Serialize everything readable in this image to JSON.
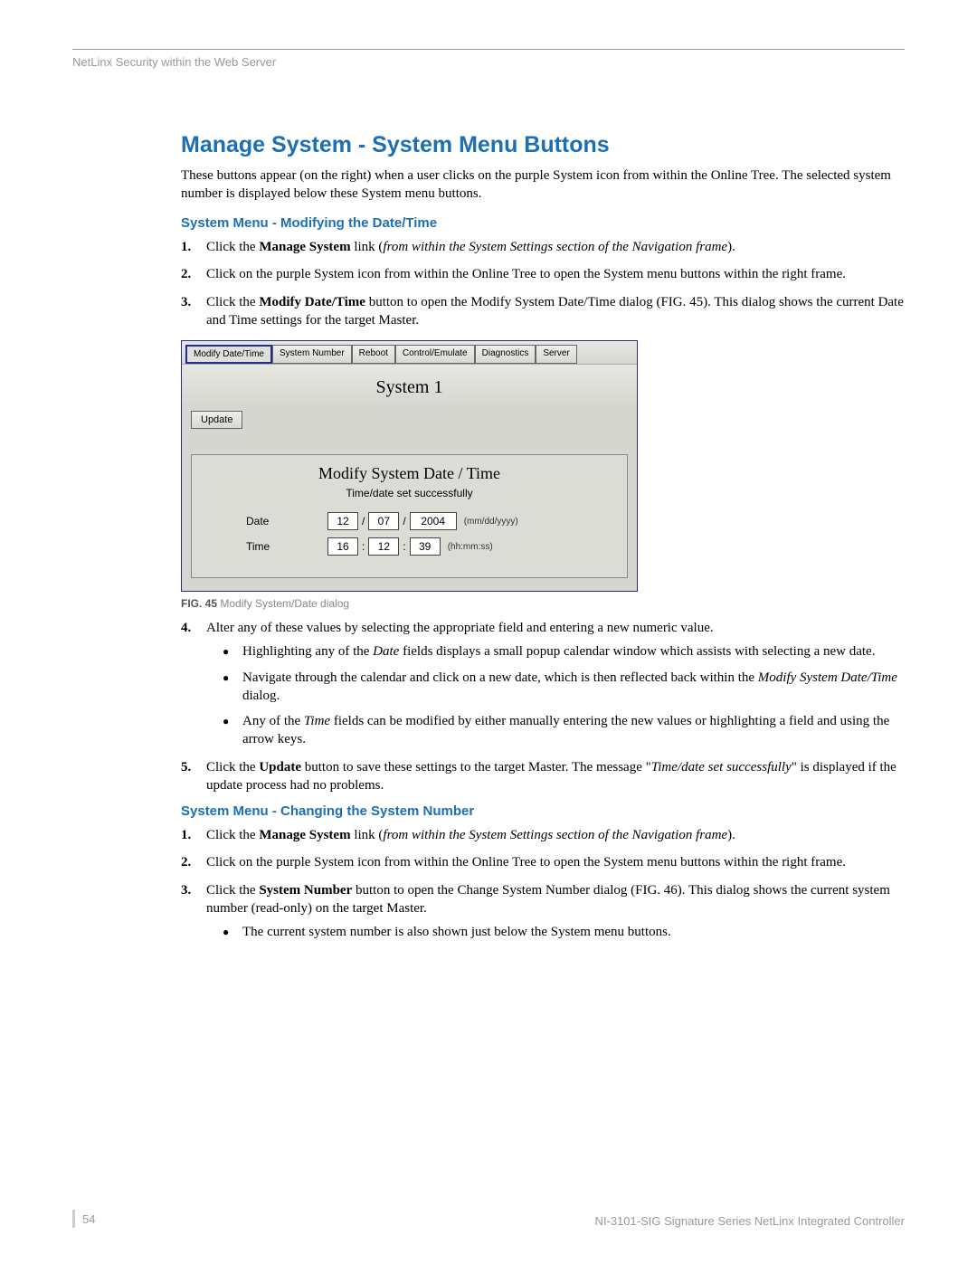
{
  "header": "NetLinx Security within the Web Server",
  "title": "Manage System - System Menu Buttons",
  "intro": "These buttons appear (on the right) when a user clicks on the purple System icon from within the Online Tree. The selected system number is displayed below these System menu buttons.",
  "section1_title": "System Menu - Modifying the Date/Time",
  "s1_step1_a": "Click the ",
  "s1_step1_b": "Manage System",
  "s1_step1_c": " link (",
  "s1_step1_d": "from within the System Settings section of the Navigation frame",
  "s1_step1_e": ").",
  "s1_step2": "Click on the purple System icon from within the Online Tree to open the System menu buttons within the right frame.",
  "s1_step3_a": "Click the ",
  "s1_step3_b": "Modify Date/Time",
  "s1_step3_c": " button to open the Modify System Date/Time dialog (FIG. 45). This dialog shows the current Date and Time settings for the target Master.",
  "shot": {
    "tabs": [
      "Modify Date/Time",
      "System Number",
      "Reboot",
      "Control/Emulate",
      "Diagnostics",
      "Server"
    ],
    "system_title": "System 1",
    "update_btn": "Update",
    "panel_title": "Modify System Date / Time",
    "panel_msg": "Time/date set successfully",
    "date_label": "Date",
    "time_label": "Time",
    "date_mm": "12",
    "date_dd": "07",
    "date_yyyy": "2004",
    "date_hint": "(mm/dd/yyyy)",
    "time_hh": "16",
    "time_mm": "12",
    "time_ss": "39",
    "time_hint": "(hh:mm:ss)"
  },
  "caption_b": "FIG. 45",
  "caption_t": "  Modify System/Date dialog",
  "s1_step4": "Alter any of these values by selecting the appropriate field and entering a new numeric value.",
  "s1_b1_a": "Highlighting any of the ",
  "s1_b1_b": "Date",
  "s1_b1_c": " fields displays a small popup calendar window which assists with selecting a new date.",
  "s1_b2_a": "Navigate through the calendar and click on a new date, which is then reflected back within the ",
  "s1_b2_b": "Modify System Date/Time",
  "s1_b2_c": " dialog.",
  "s1_b3_a": "Any of the ",
  "s1_b3_b": "Time",
  "s1_b3_c": " fields can be modified by either manually entering the new values or highlighting a field and using the arrow keys.",
  "s1_step5_a": "Click the ",
  "s1_step5_b": "Update",
  "s1_step5_c": " button to save these settings to the target Master. The message \"",
  "s1_step5_d": "Time/date set successfully",
  "s1_step5_e": "\" is displayed if the update process had no problems.",
  "section2_title": "System Menu - Changing the System Number",
  "s2_step1_a": "Click the ",
  "s2_step1_b": "Manage System",
  "s2_step1_c": " link (",
  "s2_step1_d": "from within the System Settings section of the Navigation frame",
  "s2_step1_e": ").",
  "s2_step2": "Click on the purple System icon from within the Online Tree to open the System menu buttons within the right frame.",
  "s2_step3_a": "Click the ",
  "s2_step3_b": "System Number",
  "s2_step3_c": " button to open the Change System Number dialog (FIG. 46). This dialog shows the current system number (read-only) on the target Master.",
  "s2_b1": "The current system number is also shown just below the System menu buttons.",
  "footer_page": "54",
  "footer_right": "NI-3101-SIG Signature Series NetLinx Integrated Controller"
}
